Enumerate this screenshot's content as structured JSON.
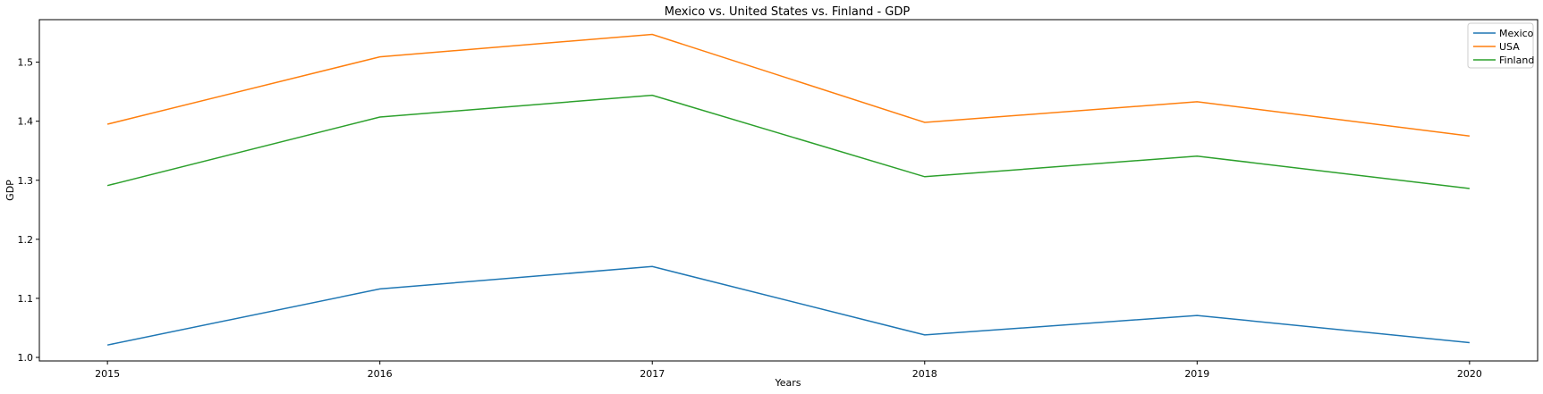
{
  "chart_data": {
    "type": "line",
    "title": "Mexico vs. United States vs. Finland - GDP",
    "xlabel": "Years",
    "ylabel": "GDP",
    "x": [
      "2015",
      "2016",
      "2017",
      "2018",
      "2019",
      "2020"
    ],
    "xlim": [
      2014.75,
      2020.25
    ],
    "ylim": [
      0.994,
      1.572
    ],
    "yticks": [
      "1.0",
      "1.1",
      "1.2",
      "1.3",
      "1.4",
      "1.5"
    ],
    "grid": false,
    "legend_position": "top-right",
    "series": [
      {
        "name": "Mexico",
        "color": "#1f77b4",
        "values": [
          1.021,
          1.116,
          1.154,
          1.038,
          1.071,
          1.025
        ]
      },
      {
        "name": "USA",
        "color": "#ff7f0e",
        "values": [
          1.395,
          1.509,
          1.547,
          1.398,
          1.433,
          1.375
        ]
      },
      {
        "name": "Finland",
        "color": "#2ca02c",
        "values": [
          1.291,
          1.407,
          1.444,
          1.306,
          1.341,
          1.286
        ]
      }
    ]
  }
}
